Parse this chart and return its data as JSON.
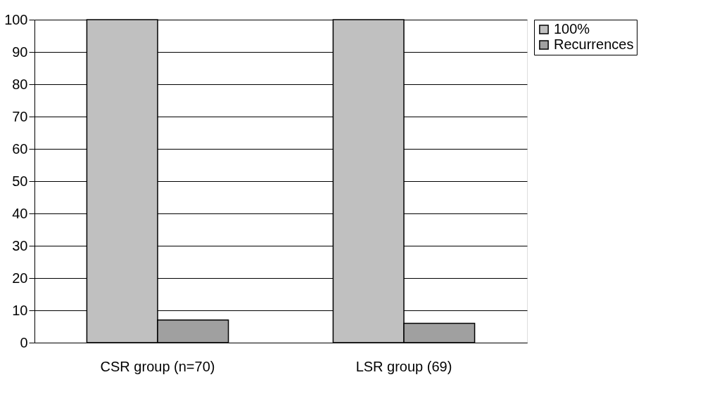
{
  "chart_data": {
    "type": "bar",
    "categories": [
      "CSR group (n=70)",
      "LSR group (69)"
    ],
    "series": [
      {
        "name": "100%",
        "color": "#c0c0c0",
        "values": [
          100,
          100
        ]
      },
      {
        "name": "Recurrences",
        "color": "#a0a0a0",
        "values": [
          7,
          6
        ]
      }
    ],
    "ylim": [
      0,
      100
    ],
    "yticks": [
      0,
      10,
      20,
      30,
      40,
      50,
      60,
      70,
      80,
      90,
      100
    ],
    "grid": "y",
    "legend": "right"
  }
}
